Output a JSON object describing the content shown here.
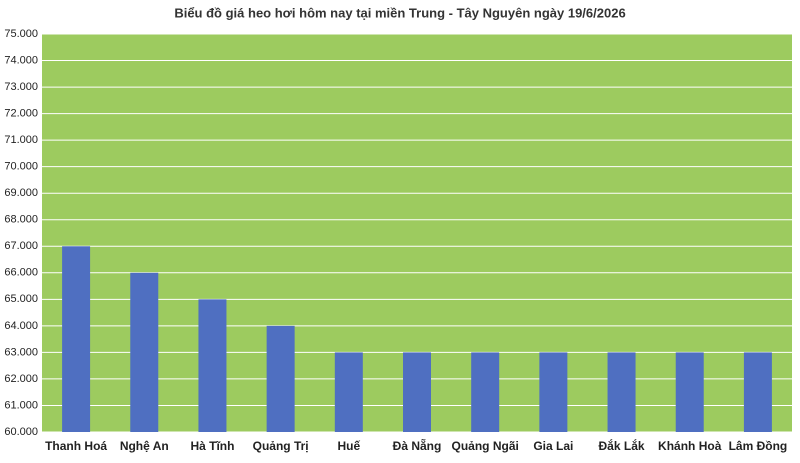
{
  "chart_data": {
    "type": "bar",
    "title": "Biểu đồ giá heo hơi hôm nay tại miền Trung - Tây Nguyên ngày 19/6/2026",
    "categories": [
      "Thanh Hoá",
      "Nghệ An",
      "Hà Tĩnh",
      "Quảng Trị",
      "Huế",
      "Đà Nẵng",
      "Quảng Ngãi",
      "Gia Lai",
      "Đắk Lắk",
      "Khánh Hoà",
      "Lâm Đồng"
    ],
    "values": [
      67000,
      66000,
      65000,
      64000,
      63000,
      63000,
      63000,
      63000,
      63000,
      63000,
      63000
    ],
    "color": "#4f6fc1",
    "background": "#9dcb5f",
    "ylim": [
      60000,
      75000
    ],
    "yticks": [
      {
        "value": 60000,
        "label": "60.000"
      },
      {
        "value": 61000,
        "label": "61.000"
      },
      {
        "value": 62000,
        "label": "62.000"
      },
      {
        "value": 63000,
        "label": "63.000"
      },
      {
        "value": 64000,
        "label": "64.000"
      },
      {
        "value": 65000,
        "label": "65.000"
      },
      {
        "value": 66000,
        "label": "66.000"
      },
      {
        "value": 67000,
        "label": "67.000"
      },
      {
        "value": 68000,
        "label": "68.000"
      },
      {
        "value": 69000,
        "label": "69.000"
      },
      {
        "value": 70000,
        "label": "70.000"
      },
      {
        "value": 71000,
        "label": "71.000"
      },
      {
        "value": 72000,
        "label": "72.000"
      },
      {
        "value": 73000,
        "label": "73.000"
      },
      {
        "value": 74000,
        "label": "74.000"
      },
      {
        "value": 75000,
        "label": "75.000"
      }
    ],
    "grid": true
  }
}
